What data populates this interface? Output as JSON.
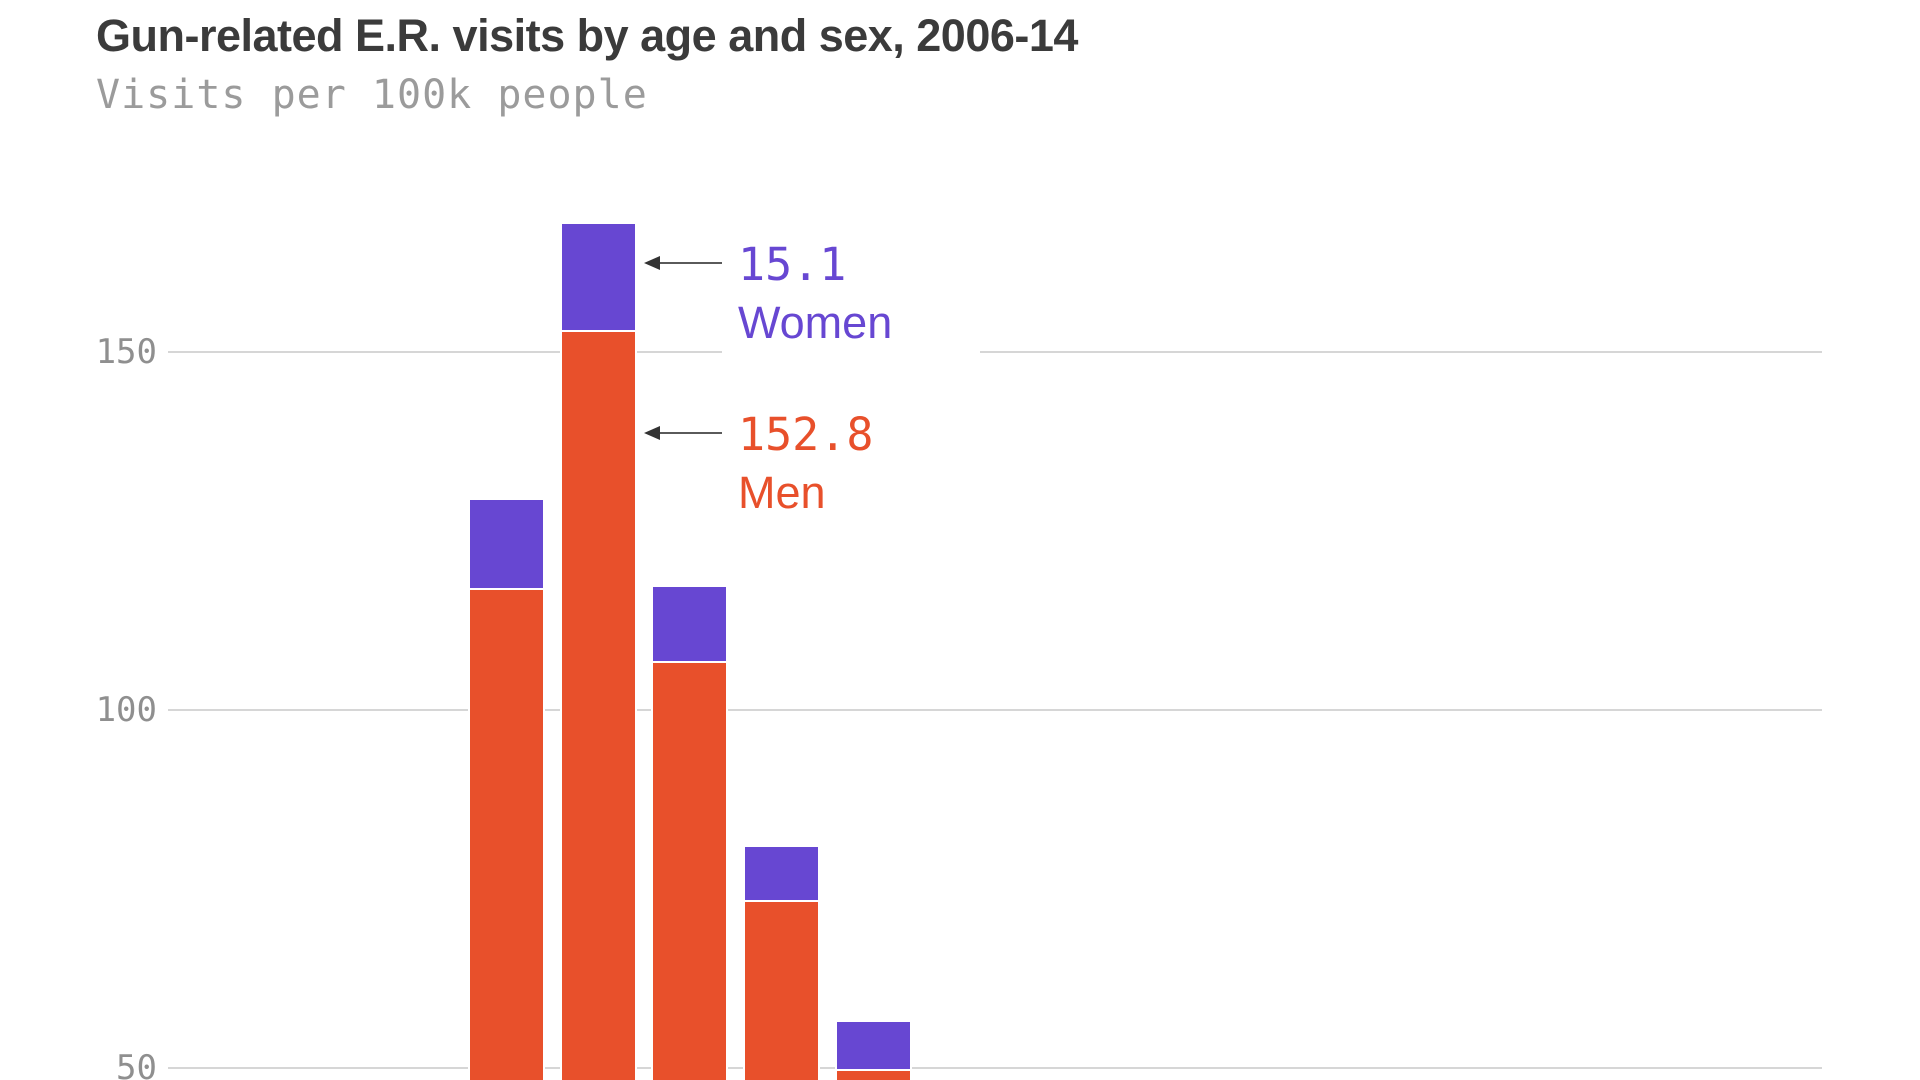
{
  "header": {
    "title": "Gun-related E.R. visits by age and sex, 2006-14",
    "subtitle": "Visits per 100k people"
  },
  "chart_data": {
    "type": "bar",
    "stacked": true,
    "title": "Gun-related E.R. visits by age and sex, 2006-14",
    "ylabel": "Visits per 100k people",
    "y_ticks": [
      150,
      100,
      50
    ],
    "y_tick_labels": [
      "150",
      "100",
      "50"
    ],
    "grid": true,
    "legend_position": "none-direct-annotation",
    "x_axis_labels_visible": false,
    "baseline_cut_off_bottom": true,
    "visible_value_range": [
      48,
      199
    ],
    "series": [
      {
        "name": "Men",
        "color": "#E8502B",
        "values": [
          116.8,
          152.8,
          106.6,
          73.2,
          49.6
        ]
      },
      {
        "name": "Women",
        "color": "#6747D2",
        "values": [
          12.5,
          15.1,
          10.6,
          7.7,
          6.8
        ]
      }
    ]
  },
  "annotations": {
    "women": {
      "value": "15.1",
      "label": "Women",
      "color": "#6747D2"
    },
    "men": {
      "value": "152.8",
      "label": "Men",
      "color": "#E8502B"
    }
  },
  "colors": {
    "men_bar": "#E8502B",
    "women_bar": "#6747D2",
    "title_text": "#3b3b3b",
    "subtitle_text": "#9b9b9b",
    "gridline": "#d6d6d6",
    "tick_text": "#8f8f8f",
    "arrow": "#5a5a5a"
  }
}
